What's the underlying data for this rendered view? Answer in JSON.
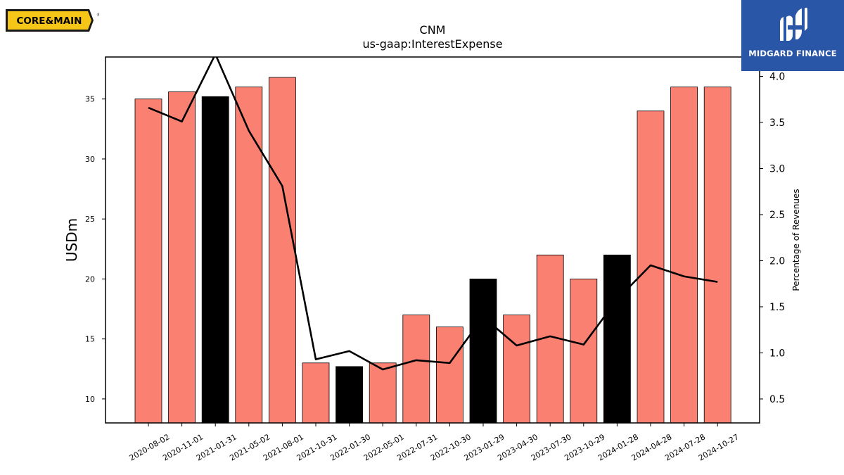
{
  "brand": {
    "left_logo_text": "CORE&MAIN",
    "right_logo_text": "MIDGARD FINANCE"
  },
  "colors": {
    "bar_default": "#fa8072",
    "bar_highlight": "#000000",
    "line": "#000000",
    "logo_yellow": "#f5c518",
    "logo_blue": "#2a56a8"
  },
  "chart_data": {
    "type": "bar",
    "title": "CNM",
    "subtitle": "us-gaap:InterestExpense",
    "ylabel": "USDm",
    "y2label": "Percentage of Revenues",
    "ylim": [
      8,
      38.5
    ],
    "y2lim": [
      0.24,
      4.21
    ],
    "yticks": [
      10,
      15,
      20,
      25,
      30,
      35
    ],
    "y2ticks": [
      0.5,
      1.0,
      1.5,
      2.0,
      2.5,
      3.0,
      3.5,
      4.0
    ],
    "y2tick_labels": [
      "0.5",
      "1.0",
      "1.5",
      "2.0",
      "2.5",
      "3.0",
      "3.5",
      "4.0"
    ],
    "categories": [
      "2020-08-02",
      "2020-11-01",
      "2021-01-31",
      "2021-05-02",
      "2021-08-01",
      "2021-10-31",
      "2022-01-30",
      "2022-05-01",
      "2022-07-31",
      "2022-10-30",
      "2023-01-29",
      "2023-04-30",
      "2023-07-30",
      "2023-10-29",
      "2024-01-28",
      "2024-04-28",
      "2024-07-28",
      "2024-10-27"
    ],
    "values": [
      35.0,
      35.6,
      35.2,
      36.0,
      36.8,
      13.0,
      12.7,
      13.0,
      17.0,
      16.0,
      20.0,
      17.0,
      22.0,
      20.0,
      22.0,
      34.0,
      36.0,
      36.0
    ],
    "highlight": [
      false,
      false,
      true,
      false,
      false,
      false,
      true,
      false,
      false,
      false,
      true,
      false,
      false,
      false,
      true,
      false,
      false,
      false
    ],
    "line_values": [
      3.66,
      3.51,
      4.24,
      3.41,
      2.81,
      0.93,
      1.02,
      0.82,
      0.92,
      0.89,
      1.39,
      1.08,
      1.18,
      1.09,
      1.58,
      1.95,
      1.83,
      1.77
    ],
    "grid": false
  }
}
